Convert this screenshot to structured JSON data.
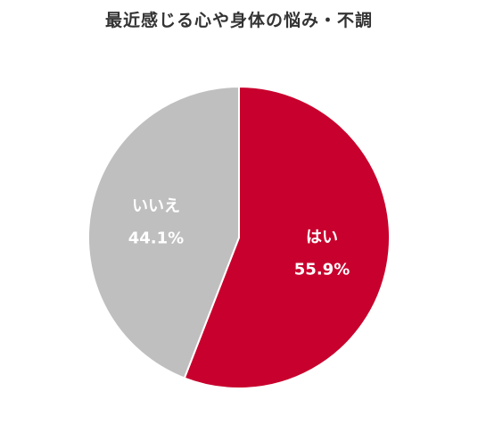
{
  "chart_data": {
    "type": "pie",
    "title": "最近感じる心や身体の悩み・不調",
    "slices": [
      {
        "label": "はい",
        "value": 55.9,
        "value_label": "55.9%",
        "color": "#c8002d"
      },
      {
        "label": "いいえ",
        "value": 44.1,
        "value_label": "44.1%",
        "color": "#bfbfbf"
      }
    ],
    "start_angle_deg": 0,
    "direction": "clockwise",
    "legend": "none"
  }
}
